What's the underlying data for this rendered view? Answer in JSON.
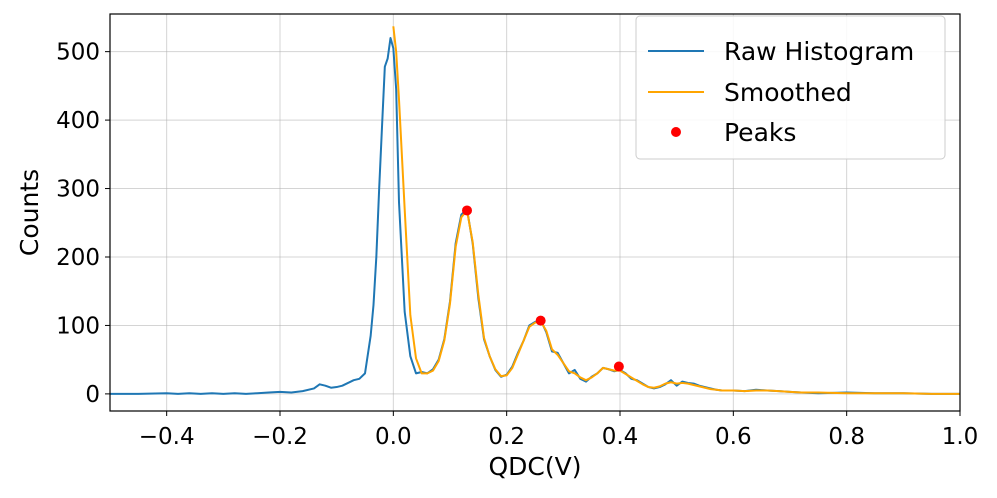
{
  "chart_data": {
    "type": "line",
    "title": "",
    "xlabel": "QDC(V)",
    "ylabel": "Counts",
    "xlim": [
      -0.5,
      1.0
    ],
    "ylim": [
      -25,
      555
    ],
    "grid": true,
    "legend_position": "top-right",
    "x_ticks": [
      -0.4,
      -0.2,
      0.0,
      0.2,
      0.4,
      0.6,
      0.8,
      1.0
    ],
    "x_tick_labels": [
      "−0.4",
      "−0.2",
      "0.0",
      "0.2",
      "0.4",
      "0.6",
      "0.8",
      "1.0"
    ],
    "y_ticks": [
      0,
      100,
      200,
      300,
      400,
      500
    ],
    "y_tick_labels": [
      "0",
      "100",
      "200",
      "300",
      "400",
      "500"
    ],
    "series": [
      {
        "name": "Raw Histogram",
        "color": "#1f77b4",
        "style": "line",
        "x": [
          -0.5,
          -0.45,
          -0.4,
          -0.38,
          -0.36,
          -0.34,
          -0.32,
          -0.3,
          -0.28,
          -0.26,
          -0.24,
          -0.22,
          -0.2,
          -0.18,
          -0.16,
          -0.14,
          -0.13,
          -0.12,
          -0.11,
          -0.1,
          -0.09,
          -0.08,
          -0.07,
          -0.06,
          -0.05,
          -0.04,
          -0.035,
          -0.03,
          -0.025,
          -0.02,
          -0.015,
          -0.01,
          -0.005,
          0.0,
          0.005,
          0.01,
          0.02,
          0.03,
          0.04,
          0.05,
          0.06,
          0.07,
          0.08,
          0.09,
          0.1,
          0.11,
          0.12,
          0.13,
          0.14,
          0.15,
          0.16,
          0.17,
          0.18,
          0.19,
          0.2,
          0.21,
          0.22,
          0.23,
          0.24,
          0.25,
          0.26,
          0.27,
          0.28,
          0.29,
          0.3,
          0.31,
          0.32,
          0.33,
          0.34,
          0.35,
          0.36,
          0.37,
          0.38,
          0.39,
          0.4,
          0.41,
          0.42,
          0.43,
          0.44,
          0.45,
          0.46,
          0.47,
          0.48,
          0.49,
          0.5,
          0.51,
          0.52,
          0.53,
          0.54,
          0.55,
          0.56,
          0.57,
          0.58,
          0.6,
          0.62,
          0.64,
          0.66,
          0.68,
          0.7,
          0.72,
          0.75,
          0.8,
          0.85,
          0.9,
          0.95,
          1.0
        ],
        "y": [
          0,
          0,
          1,
          0,
          1,
          0,
          1,
          0,
          1,
          0,
          1,
          2,
          3,
          2,
          4,
          8,
          14,
          12,
          9,
          10,
          12,
          16,
          20,
          22,
          30,
          85,
          130,
          200,
          300,
          390,
          478,
          490,
          520,
          505,
          445,
          280,
          120,
          55,
          30,
          32,
          30,
          36,
          50,
          80,
          135,
          220,
          262,
          270,
          220,
          140,
          80,
          55,
          35,
          25,
          28,
          40,
          60,
          78,
          100,
          105,
          108,
          90,
          62,
          60,
          45,
          30,
          35,
          22,
          18,
          25,
          30,
          38,
          36,
          33,
          35,
          30,
          22,
          20,
          15,
          10,
          8,
          10,
          14,
          20,
          12,
          18,
          16,
          15,
          12,
          10,
          8,
          6,
          5,
          5,
          4,
          6,
          5,
          4,
          3,
          2,
          1,
          2,
          1,
          1,
          0,
          0
        ]
      },
      {
        "name": "Smoothed",
        "color": "#ffa500",
        "style": "line",
        "x": [
          0.0,
          0.005,
          0.01,
          0.02,
          0.03,
          0.04,
          0.05,
          0.06,
          0.07,
          0.08,
          0.09,
          0.1,
          0.11,
          0.12,
          0.13,
          0.14,
          0.15,
          0.16,
          0.17,
          0.18,
          0.19,
          0.2,
          0.21,
          0.22,
          0.23,
          0.24,
          0.25,
          0.26,
          0.27,
          0.28,
          0.29,
          0.3,
          0.31,
          0.32,
          0.33,
          0.34,
          0.35,
          0.36,
          0.37,
          0.38,
          0.39,
          0.4,
          0.41,
          0.42,
          0.43,
          0.44,
          0.45,
          0.46,
          0.47,
          0.48,
          0.49,
          0.5,
          0.51,
          0.52,
          0.53,
          0.54,
          0.55,
          0.56,
          0.57,
          0.58,
          0.6,
          0.62,
          0.64,
          0.66,
          0.68,
          0.7,
          0.72,
          0.75,
          0.8,
          0.85,
          0.9,
          0.95,
          1.0
        ],
        "y": [
          537,
          500,
          430,
          270,
          115,
          52,
          30,
          30,
          34,
          48,
          78,
          132,
          215,
          258,
          268,
          222,
          145,
          82,
          55,
          36,
          26,
          27,
          38,
          58,
          78,
          98,
          104,
          106,
          92,
          65,
          57,
          45,
          33,
          30,
          24,
          20,
          24,
          30,
          38,
          36,
          34,
          34,
          29,
          24,
          19,
          14,
          10,
          9,
          11,
          15,
          17,
          15,
          16,
          15,
          13,
          11,
          9,
          7,
          6,
          5,
          5,
          4,
          5,
          5,
          4,
          3,
          2,
          2,
          1,
          1,
          1,
          0,
          0
        ]
      },
      {
        "name": "Peaks",
        "color": "#ff0000",
        "style": "scatter",
        "x": [
          0.13,
          0.26,
          0.398
        ],
        "y": [
          268,
          107,
          40
        ]
      }
    ]
  }
}
